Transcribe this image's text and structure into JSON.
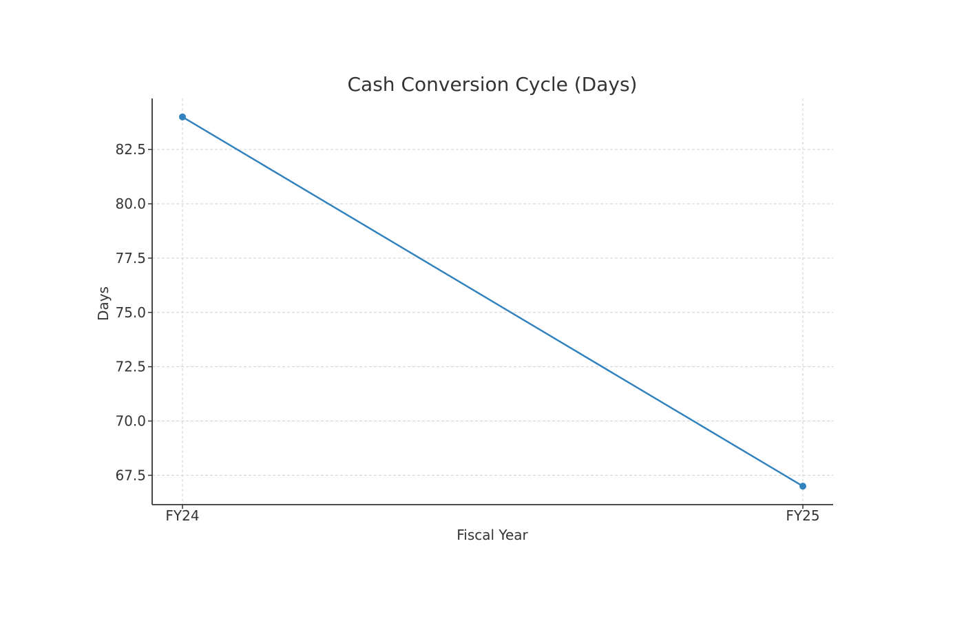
{
  "chart_data": {
    "type": "line",
    "title": "Cash Conversion Cycle (Days)",
    "xlabel": "Fiscal Year",
    "ylabel": "Days",
    "categories": [
      "FY24",
      "FY25"
    ],
    "series": [
      {
        "values": [
          84,
          67
        ],
        "color": "#3182bd",
        "marker": "circle"
      }
    ],
    "yticks": [
      67.5,
      70.0,
      72.5,
      75.0,
      77.5,
      80.0,
      82.5
    ],
    "ytick_labels": [
      "67.5",
      "70.0",
      "72.5",
      "75.0",
      "77.5",
      "80.0",
      "82.5"
    ],
    "ylim": [
      66.15,
      84.85
    ],
    "grid": true,
    "grid_color": "#d0d0d0",
    "axis_color": "#333333",
    "text_color": "#333333"
  }
}
